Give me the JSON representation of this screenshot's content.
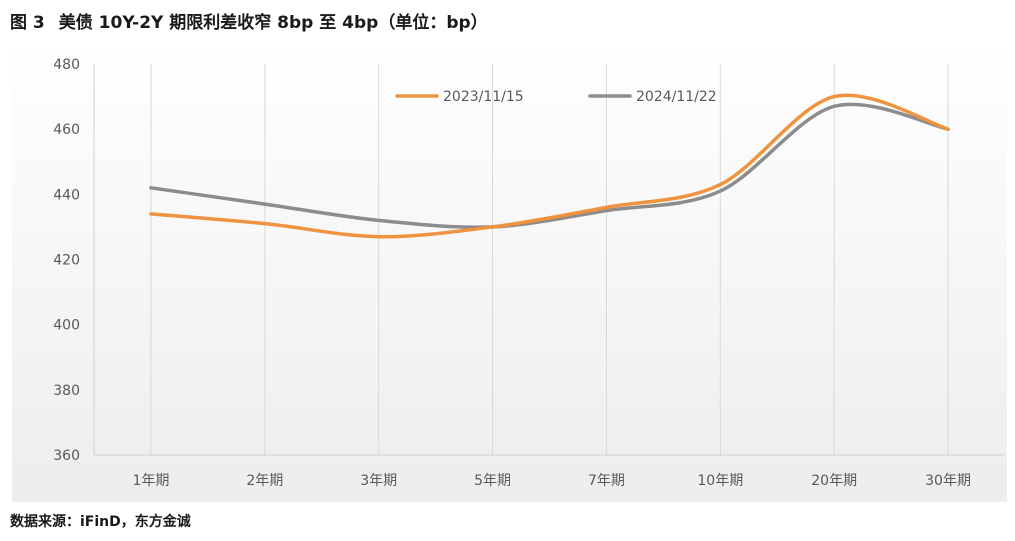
{
  "figure": {
    "number": "图 3",
    "title": "美债 10Y-2Y 期限利差收窄 8bp 至 4bp（单位：bp）",
    "source": "数据来源：iFinD，东方金诚"
  },
  "chart_data": {
    "type": "line",
    "title": "美债 10Y-2Y 期限利差收窄 8bp 至 4bp（单位：bp）",
    "xlabel": "",
    "ylabel": "",
    "categories": [
      "1年期",
      "2年期",
      "3年期",
      "5年期",
      "7年期",
      "10年期",
      "20年期",
      "30年期"
    ],
    "series": [
      {
        "name": "2023/11/15",
        "color": "#F0933F",
        "values": [
          434,
          431,
          427,
          430,
          436,
          443,
          470,
          460
        ]
      },
      {
        "name": "2024/11/22",
        "color": "#8C8C8C",
        "values": [
          442,
          437,
          432,
          430,
          435,
          441,
          467,
          460
        ]
      }
    ],
    "ylim": [
      360,
      480
    ],
    "yticks": [
      360,
      380,
      400,
      420,
      440,
      460,
      480
    ],
    "smooth": true,
    "grid": "vertical",
    "legend": "top-right",
    "background": "#F2F2F2",
    "axis_color": "#D0D0D0",
    "tick_color": "#595959"
  }
}
